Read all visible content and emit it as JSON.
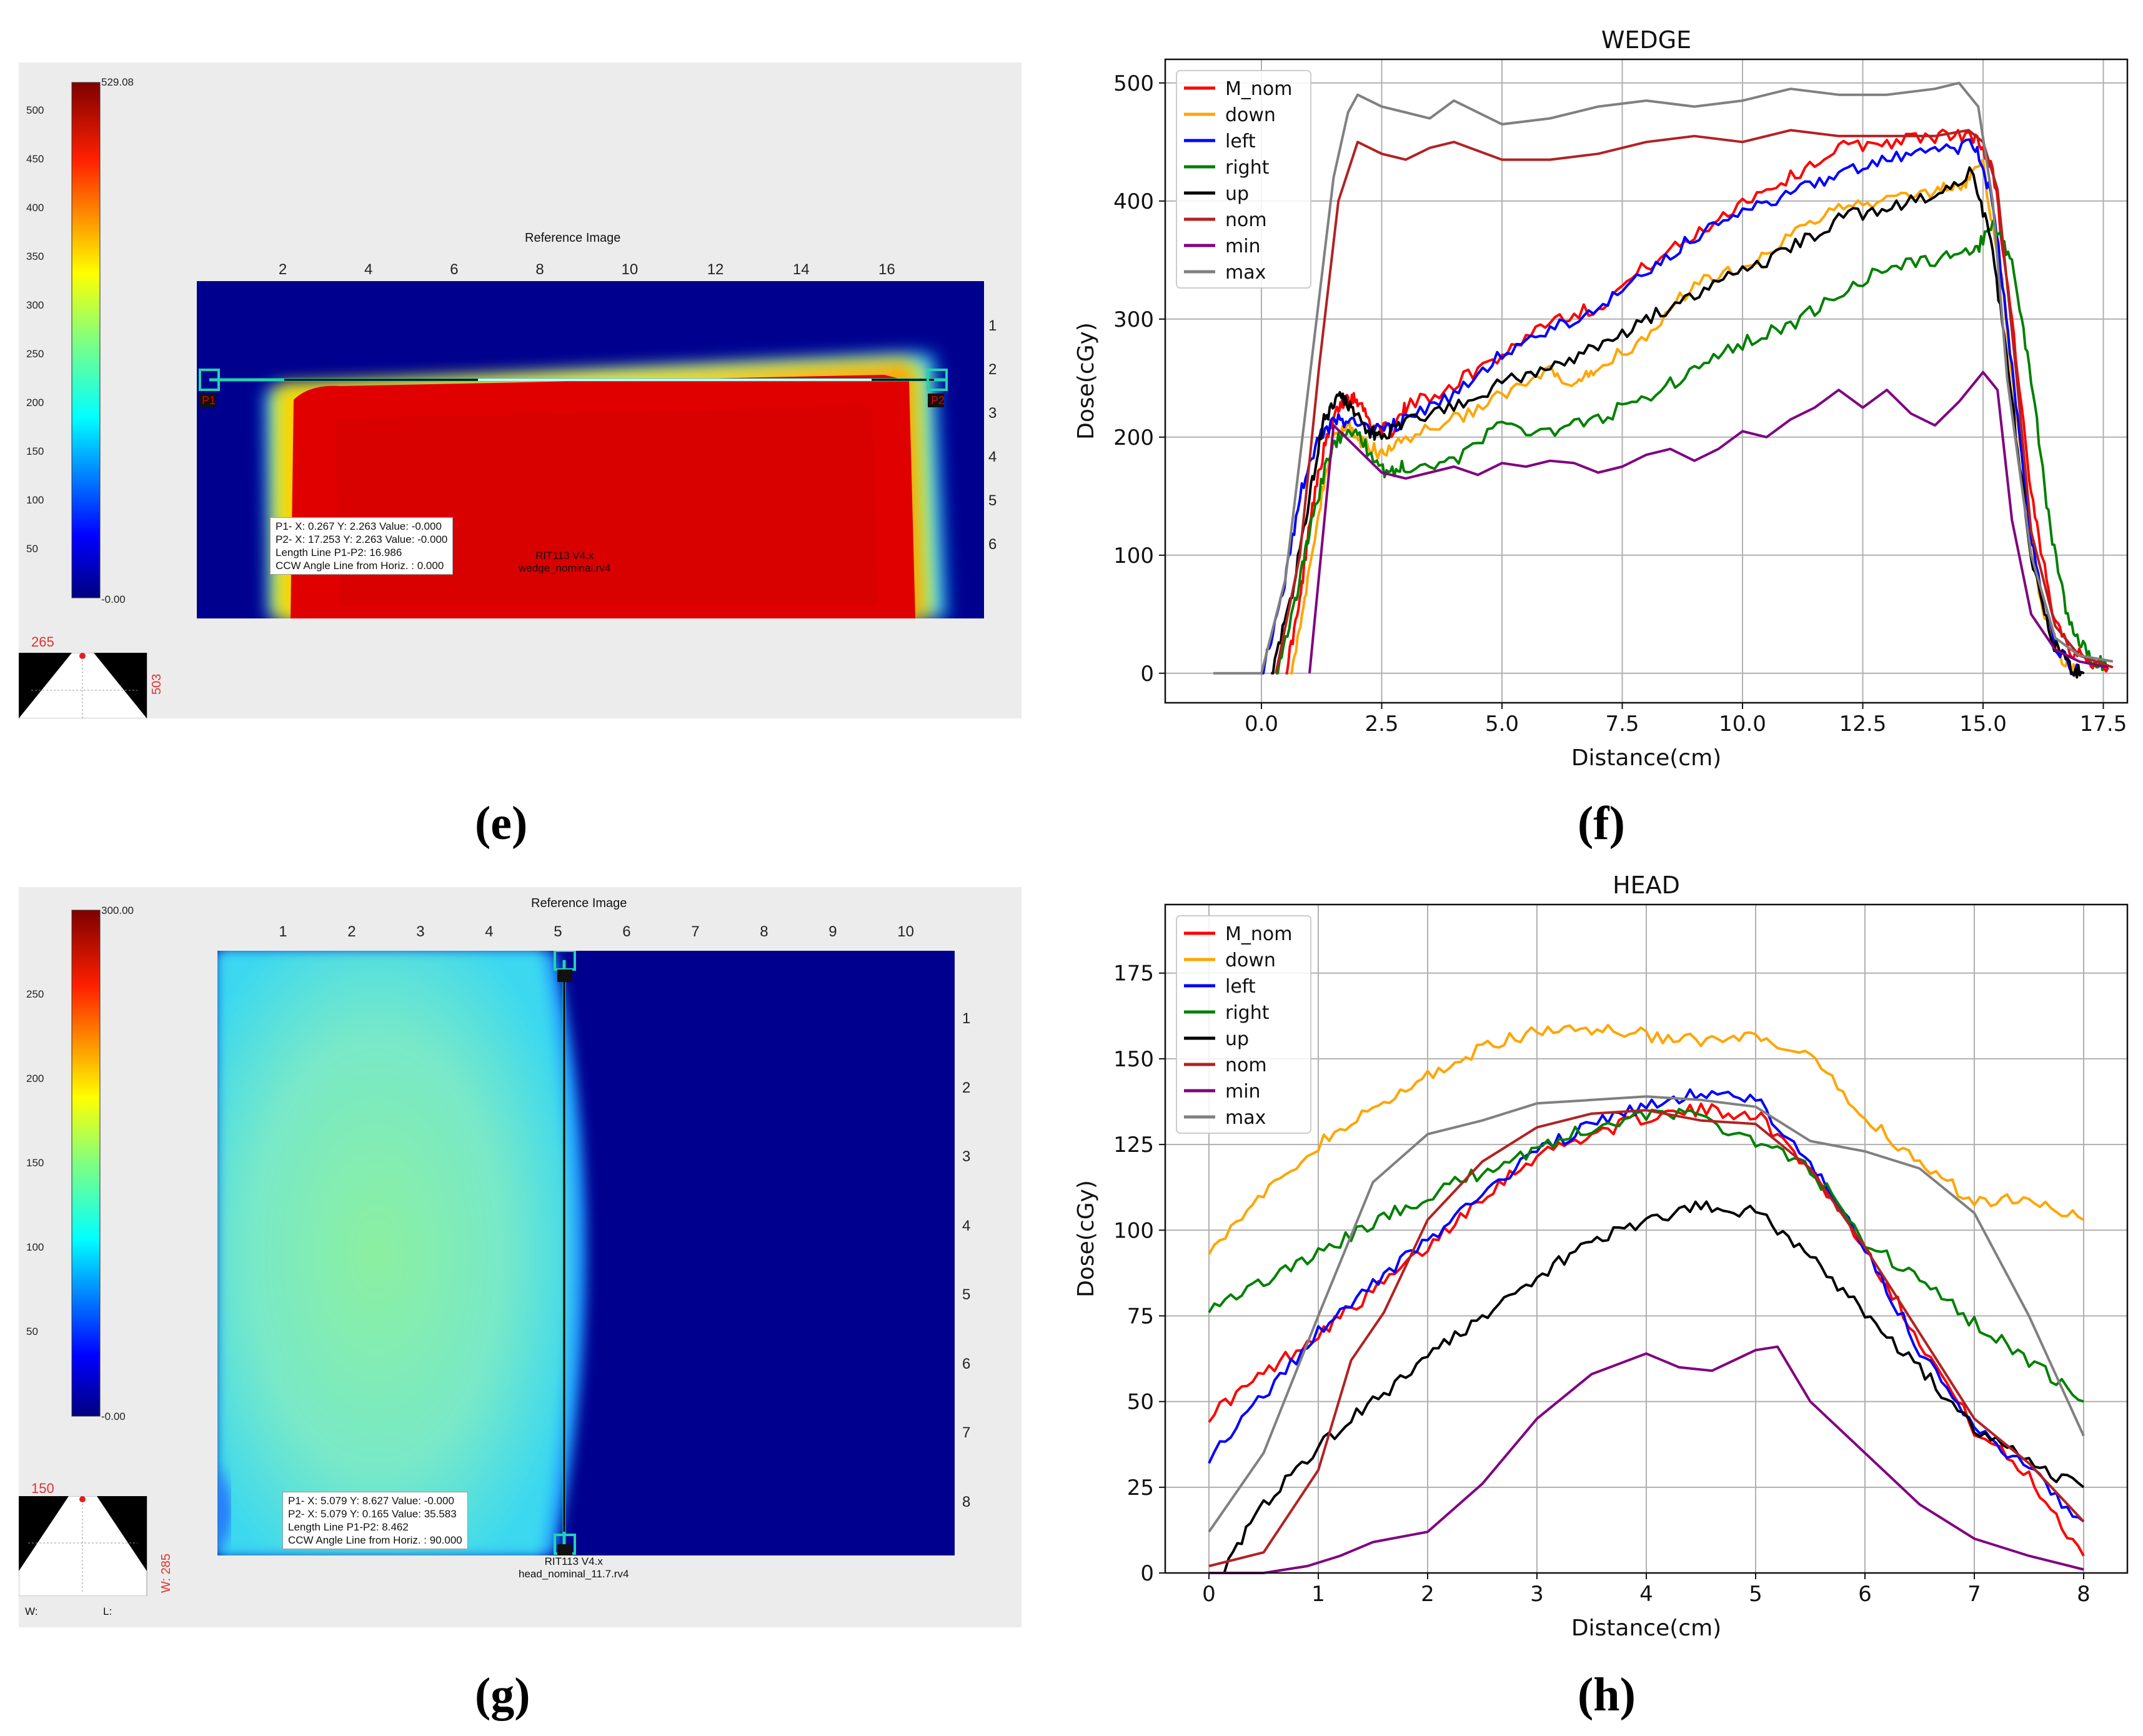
{
  "panels": {
    "e": {
      "caption": "(e)",
      "colorbar": {
        "max_label": "529.08",
        "min_label": "-0.00",
        "ticks": [
          "500",
          "450",
          "400",
          "350",
          "300",
          "250",
          "200",
          "150",
          "100",
          "50"
        ]
      },
      "image_title": "Reference Image",
      "top_ticks": [
        "2",
        "4",
        "6",
        "8",
        "10",
        "12",
        "14",
        "16"
      ],
      "right_ticks": [
        "1",
        "2",
        "3",
        "4",
        "5",
        "6"
      ],
      "annotation": [
        "P1- X: 0.267  Y: 2.263  Value: -0.000",
        "P2- X: 17.253 Y: 2.263  Value: -0.000",
        "Length Line P1-P2: 16.986",
        "CCW Angle Line from Horiz. : 0.000"
      ],
      "file_lines": [
        "RIT113 V4.x",
        "wedge_nominal.rv4"
      ],
      "marker_p1": "P1",
      "marker_p2": "P2",
      "tri_top": "265",
      "tri_side": "503"
    },
    "g": {
      "caption": "(g)",
      "colorbar": {
        "max_label": "300.00",
        "min_label": "-0.00",
        "ticks": [
          "250",
          "200",
          "150",
          "100",
          "50"
        ]
      },
      "image_title": "Reference Image",
      "top_ticks": [
        "1",
        "2",
        "3",
        "4",
        "5",
        "6",
        "7",
        "8",
        "9",
        "10"
      ],
      "right_ticks": [
        "1",
        "2",
        "3",
        "4",
        "5",
        "6",
        "7",
        "8"
      ],
      "annotation": [
        "P1- X: 5.079  Y: 8.627  Value: -0.000",
        "P2- X: 5.079  Y: 0.165  Value: 35.583",
        "Length Line P1-P2: 8.462",
        "CCW Angle Line from Horiz. : 90.000"
      ],
      "file_lines": [
        "RIT113 V4.x",
        "head_nominal_11.7.rv4"
      ],
      "marker_p1": "P1",
      "marker_p2": "P2",
      "tri_top": "150",
      "tri_side": "W: 285",
      "w_label": "W:",
      "l_label": "L:"
    },
    "f": {
      "caption": "(f)"
    },
    "h": {
      "caption": "(h)"
    }
  },
  "chart_data": [
    {
      "id": "f",
      "type": "line",
      "title": "WEDGE",
      "xlabel": "Distance(cm)",
      "ylabel": "Dose(cGy)",
      "xlim": [
        -2.0,
        18.0
      ],
      "ylim": [
        -25,
        520
      ],
      "xticks": [
        0.0,
        2.5,
        5.0,
        7.5,
        10.0,
        12.5,
        15.0,
        17.5
      ],
      "xtick_labels": [
        "0.0",
        "2.5",
        "5.0",
        "7.5",
        "10.0",
        "12.5",
        "15.0",
        "17.5"
      ],
      "yticks": [
        0,
        100,
        200,
        300,
        400,
        500
      ],
      "ytick_labels": [
        "0",
        "100",
        "200",
        "300",
        "400",
        "500"
      ],
      "grid": true,
      "legend_position": "top-left",
      "series": [
        {
          "name": "M_nom",
          "color": "#ff0000",
          "x": [
            0.5,
            0.8,
            1.0,
            1.3,
            1.6,
            1.8,
            2.0,
            2.3,
            2.7,
            3.0,
            4.0,
            5.0,
            6.0,
            7.0,
            8.0,
            9.0,
            10.0,
            11.0,
            12.0,
            13.0,
            14.0,
            14.8,
            15.2,
            15.6,
            16.0,
            16.4,
            16.8,
            17.2,
            17.6
          ],
          "y": [
            0,
            60,
            130,
            190,
            225,
            235,
            232,
            210,
            205,
            225,
            245,
            270,
            300,
            310,
            345,
            370,
            400,
            420,
            445,
            450,
            455,
            455,
            430,
            300,
            150,
            60,
            20,
            10,
            5
          ],
          "noise": 6
        },
        {
          "name": "down",
          "color": "#ffa500",
          "x": [
            0.6,
            0.9,
            1.2,
            1.5,
            1.8,
            2.1,
            2.5,
            3.0,
            4.0,
            5.0,
            6.0,
            6.5,
            7.0,
            8.0,
            9.0,
            10.0,
            11.0,
            12.0,
            13.0,
            14.0,
            14.6,
            15.0,
            15.4,
            15.8,
            16.2,
            16.6,
            17.0
          ],
          "y": [
            0,
            60,
            140,
            200,
            210,
            195,
            185,
            200,
            215,
            235,
            255,
            240,
            260,
            285,
            330,
            345,
            370,
            395,
            400,
            410,
            415,
            430,
            330,
            180,
            60,
            15,
            0
          ],
          "noise": 6
        },
        {
          "name": "left",
          "color": "#0000ff",
          "x": [
            0.0,
            0.4,
            0.8,
            1.2,
            1.6,
            2.0,
            2.5,
            3.0,
            4.0,
            5.0,
            6.0,
            7.0,
            8.0,
            9.0,
            10.0,
            11.0,
            12.0,
            13.0,
            14.0,
            14.8,
            15.2,
            15.6,
            16.0,
            16.5,
            17.0
          ],
          "y": [
            0,
            60,
            150,
            200,
            215,
            210,
            205,
            215,
            235,
            270,
            290,
            310,
            340,
            370,
            390,
            405,
            425,
            435,
            440,
            450,
            400,
            260,
            110,
            20,
            0
          ],
          "noise": 6
        },
        {
          "name": "right",
          "color": "#008000",
          "x": [
            0.3,
            0.7,
            1.0,
            1.4,
            1.8,
            2.2,
            2.6,
            3.0,
            4.0,
            5.0,
            6.0,
            7.0,
            8.0,
            9.0,
            10.0,
            11.0,
            12.0,
            13.0,
            14.0,
            14.8,
            15.2,
            15.6,
            16.0,
            16.4,
            16.8,
            17.2,
            17.6
          ],
          "y": [
            0,
            60,
            120,
            185,
            210,
            190,
            170,
            175,
            180,
            210,
            205,
            215,
            235,
            255,
            280,
            295,
            320,
            345,
            350,
            355,
            380,
            350,
            250,
            120,
            40,
            15,
            5
          ],
          "noise": 6
        },
        {
          "name": "up",
          "color": "#000000",
          "x": [
            0.2,
            0.6,
            1.0,
            1.3,
            1.6,
            1.9,
            2.2,
            2.5,
            3.0,
            4.0,
            5.0,
            6.0,
            7.0,
            8.0,
            9.0,
            10.0,
            11.0,
            12.0,
            13.0,
            14.0,
            14.8,
            15.2,
            15.6,
            16.0,
            16.4,
            16.8,
            17.1
          ],
          "y": [
            0,
            60,
            150,
            215,
            235,
            225,
            205,
            200,
            215,
            225,
            245,
            260,
            275,
            300,
            320,
            340,
            360,
            385,
            395,
            405,
            425,
            360,
            230,
            100,
            30,
            5,
            0
          ],
          "noise": 6
        },
        {
          "name": "nom",
          "color": "#b22222",
          "x": [
            0.3,
            0.8,
            1.2,
            1.6,
            2.0,
            2.5,
            3.0,
            3.5,
            4.0,
            5.0,
            6.0,
            7.0,
            8.0,
            9.0,
            10.0,
            11.0,
            12.0,
            13.0,
            14.0,
            14.7,
            15.0,
            15.3,
            15.7,
            16.0,
            16.5,
            17.0,
            17.7
          ],
          "y": [
            0,
            100,
            260,
            400,
            450,
            440,
            435,
            445,
            450,
            435,
            435,
            440,
            450,
            455,
            450,
            460,
            455,
            455,
            455,
            460,
            450,
            410,
            250,
            120,
            40,
            15,
            5
          ],
          "noise": 0
        },
        {
          "name": "min",
          "color": "#800080",
          "x": [
            1.0,
            1.5,
            2.0,
            2.5,
            3.0,
            3.5,
            4.0,
            4.5,
            5.0,
            5.5,
            6.0,
            6.5,
            7.0,
            7.5,
            8.0,
            8.5,
            9.0,
            9.5,
            10.0,
            10.5,
            11.0,
            11.5,
            12.0,
            12.5,
            13.0,
            13.5,
            14.0,
            14.5,
            15.0,
            15.3,
            15.6,
            16.0,
            16.5,
            17.0,
            17.6
          ],
          "y": [
            0,
            210,
            190,
            170,
            165,
            170,
            175,
            168,
            178,
            175,
            180,
            178,
            170,
            175,
            185,
            190,
            180,
            190,
            205,
            200,
            215,
            225,
            240,
            225,
            240,
            220,
            210,
            230,
            255,
            240,
            130,
            50,
            20,
            10,
            5
          ],
          "noise": 0
        },
        {
          "name": "max",
          "color": "#808080",
          "x": [
            -1.0,
            0.0,
            0.5,
            1.0,
            1.5,
            1.8,
            2.0,
            2.5,
            3.0,
            3.5,
            4.0,
            5.0,
            6.0,
            7.0,
            8.0,
            9.0,
            10.0,
            11.0,
            12.0,
            13.0,
            14.0,
            14.5,
            14.9,
            15.2,
            15.5,
            16.0,
            16.5,
            17.0,
            17.7
          ],
          "y": [
            0,
            0,
            80,
            250,
            420,
            475,
            490,
            480,
            475,
            470,
            485,
            465,
            470,
            480,
            485,
            480,
            485,
            495,
            490,
            490,
            495,
            500,
            480,
            400,
            250,
            100,
            30,
            15,
            10
          ],
          "noise": 0
        }
      ]
    },
    {
      "id": "h",
      "type": "line",
      "title": "HEAD",
      "xlabel": "Distance(cm)",
      "ylabel": "Dose(cGy)",
      "xlim": [
        -0.4,
        8.4
      ],
      "ylim": [
        0,
        195
      ],
      "xticks": [
        0,
        1,
        2,
        3,
        4,
        5,
        6,
        7,
        8
      ],
      "xtick_labels": [
        "0",
        "1",
        "2",
        "3",
        "4",
        "5",
        "6",
        "7",
        "8"
      ],
      "yticks": [
        0,
        25,
        50,
        75,
        100,
        125,
        150,
        175
      ],
      "ytick_labels": [
        "0",
        "25",
        "50",
        "75",
        "100",
        "125",
        "150",
        "175"
      ],
      "grid": true,
      "legend_position": "top-left",
      "series": [
        {
          "name": "M_nom",
          "color": "#ff0000",
          "x": [
            0,
            0.5,
            1,
            1.5,
            2,
            2.5,
            3,
            3.5,
            4,
            4.5,
            5,
            5.5,
            6,
            6.5,
            7,
            7.5,
            8
          ],
          "y": [
            46,
            58,
            70,
            82,
            95,
            110,
            122,
            128,
            133,
            135,
            134,
            118,
            95,
            68,
            42,
            28,
            5
          ],
          "noise": 2
        },
        {
          "name": "down",
          "color": "#ffa500",
          "x": [
            0,
            0.5,
            1,
            1.5,
            2,
            2.5,
            3,
            3.5,
            4,
            4.5,
            5,
            5.5,
            6,
            6.5,
            7,
            7.5,
            8
          ],
          "y": [
            95,
            110,
            125,
            135,
            145,
            153,
            158,
            159,
            157,
            155,
            156,
            150,
            133,
            120,
            108,
            110,
            103
          ],
          "noise": 2
        },
        {
          "name": "left",
          "color": "#0000ff",
          "x": [
            0,
            0.5,
            1,
            1.5,
            2,
            2.5,
            3,
            3.5,
            4,
            4.5,
            5,
            5.5,
            6,
            6.5,
            7,
            7.5,
            8
          ],
          "y": [
            34,
            52,
            70,
            84,
            97,
            110,
            123,
            131,
            136,
            140,
            138,
            120,
            95,
            65,
            42,
            30,
            15
          ],
          "noise": 2
        },
        {
          "name": "right",
          "color": "#008000",
          "x": [
            0,
            0.5,
            1,
            1.5,
            2,
            2.5,
            3,
            3.5,
            4,
            4.5,
            5,
            5.5,
            6,
            6.5,
            7,
            7.5,
            8
          ],
          "y": [
            78,
            85,
            93,
            102,
            110,
            117,
            124,
            130,
            134,
            133,
            126,
            118,
            97,
            85,
            73,
            62,
            50
          ],
          "noise": 2
        },
        {
          "name": "up",
          "color": "#000000",
          "x": [
            0.1,
            0.5,
            1,
            1.5,
            2,
            2.5,
            3,
            3.5,
            4,
            4.5,
            5,
            5.5,
            6,
            6.5,
            7,
            7.5,
            8
          ],
          "y": [
            0,
            20,
            37,
            50,
            63,
            75,
            86,
            97,
            103,
            107,
            105,
            93,
            75,
            60,
            42,
            32,
            25
          ],
          "noise": 2
        },
        {
          "name": "nom",
          "color": "#b22222",
          "x": [
            0,
            0.5,
            1,
            1.3,
            1.6,
            2,
            2.5,
            3,
            3.5,
            4,
            4.5,
            5,
            5.5,
            6,
            6.5,
            7,
            7.5,
            8
          ],
          "y": [
            2,
            6,
            30,
            62,
            76,
            103,
            120,
            130,
            134,
            135,
            132,
            131,
            118,
            95,
            70,
            45,
            32,
            15
          ],
          "noise": 0
        },
        {
          "name": "min",
          "color": "#800080",
          "x": [
            0,
            0.5,
            0.9,
            1.2,
            1.5,
            2,
            2.5,
            3,
            3.5,
            4,
            4.3,
            4.6,
            5,
            5.2,
            5.5,
            6,
            6.5,
            7,
            7.5,
            8
          ],
          "y": [
            0,
            0,
            2,
            5,
            9,
            12,
            26,
            45,
            58,
            64,
            60,
            59,
            65,
            66,
            50,
            35,
            20,
            10,
            5,
            1
          ],
          "noise": 0
        },
        {
          "name": "max",
          "color": "#808080",
          "x": [
            0,
            0.5,
            1,
            1.5,
            2,
            2.5,
            3,
            3.5,
            4,
            4.5,
            5,
            5.5,
            6,
            6.5,
            7,
            7.5,
            8
          ],
          "y": [
            12,
            35,
            75,
            114,
            128,
            132,
            137,
            138,
            139,
            138,
            136,
            126,
            123,
            118,
            105,
            75,
            40
          ],
          "noise": 0
        }
      ]
    }
  ]
}
